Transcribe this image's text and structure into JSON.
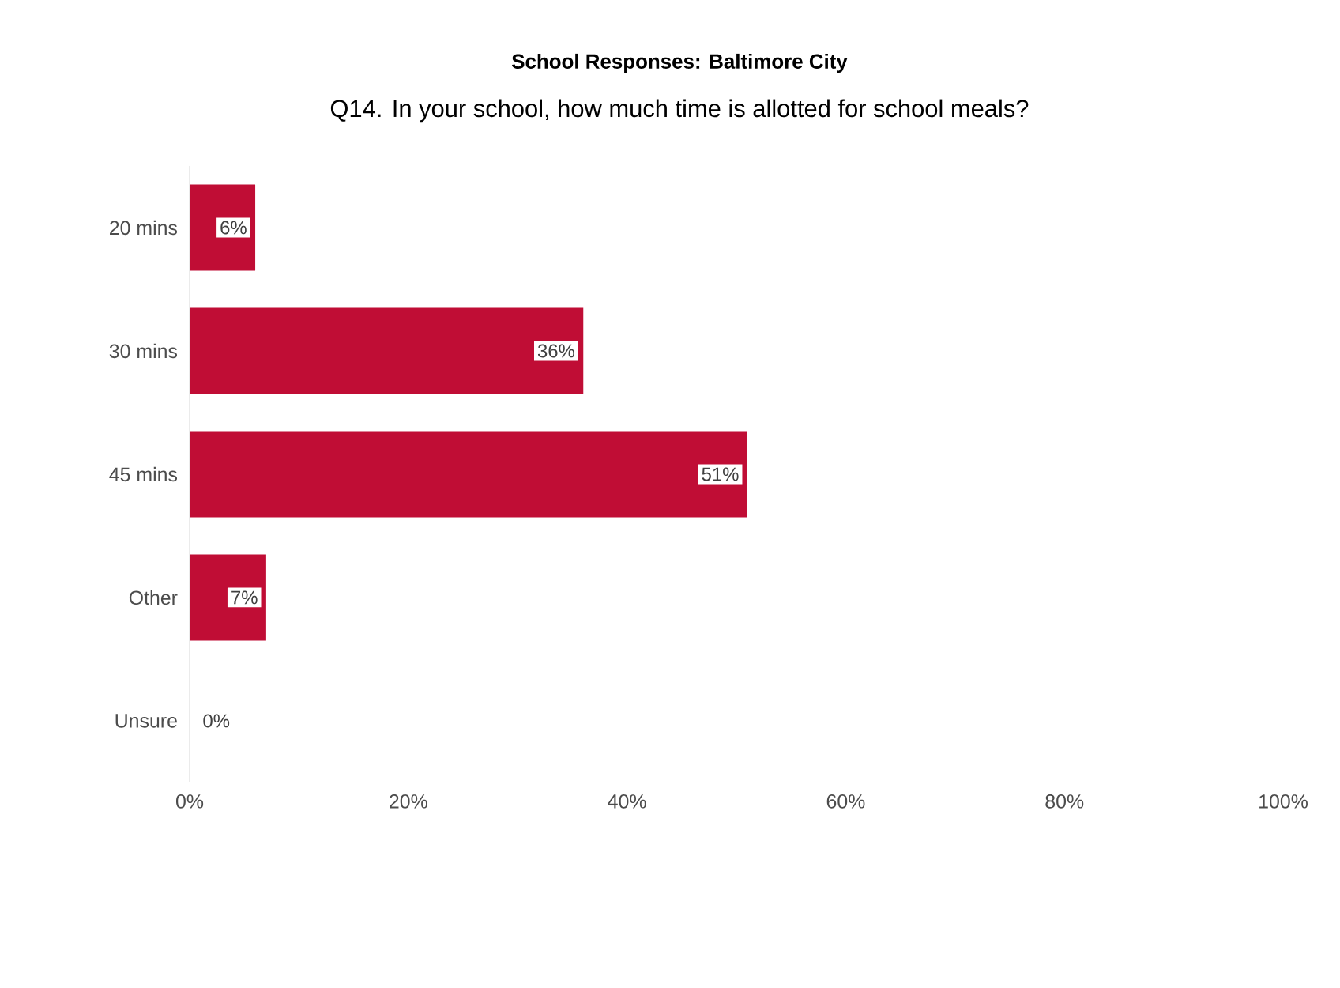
{
  "chart_data": {
    "type": "bar",
    "orientation": "horizontal",
    "title": "School Responses: Baltimore City",
    "subtitle": "Q14. In your school, how much time is allotted for school meals?",
    "categories": [
      "20 mins",
      "30 mins",
      "45 mins",
      "Other",
      "Unsure"
    ],
    "values": [
      6,
      36,
      51,
      7,
      0
    ],
    "color": "#c00d35",
    "value_labels": [
      "6%",
      "36%",
      "51%",
      "7%",
      "0%"
    ],
    "xlim": [
      0,
      100
    ],
    "xticks": [
      {
        "value": 0,
        "label": "0%"
      },
      {
        "value": 20,
        "label": "20%"
      },
      {
        "value": 40,
        "label": "40%"
      },
      {
        "value": 60,
        "label": "60%"
      },
      {
        "value": 80,
        "label": "80%"
      },
      {
        "value": 100,
        "label": "100%"
      }
    ],
    "grid": false
  }
}
